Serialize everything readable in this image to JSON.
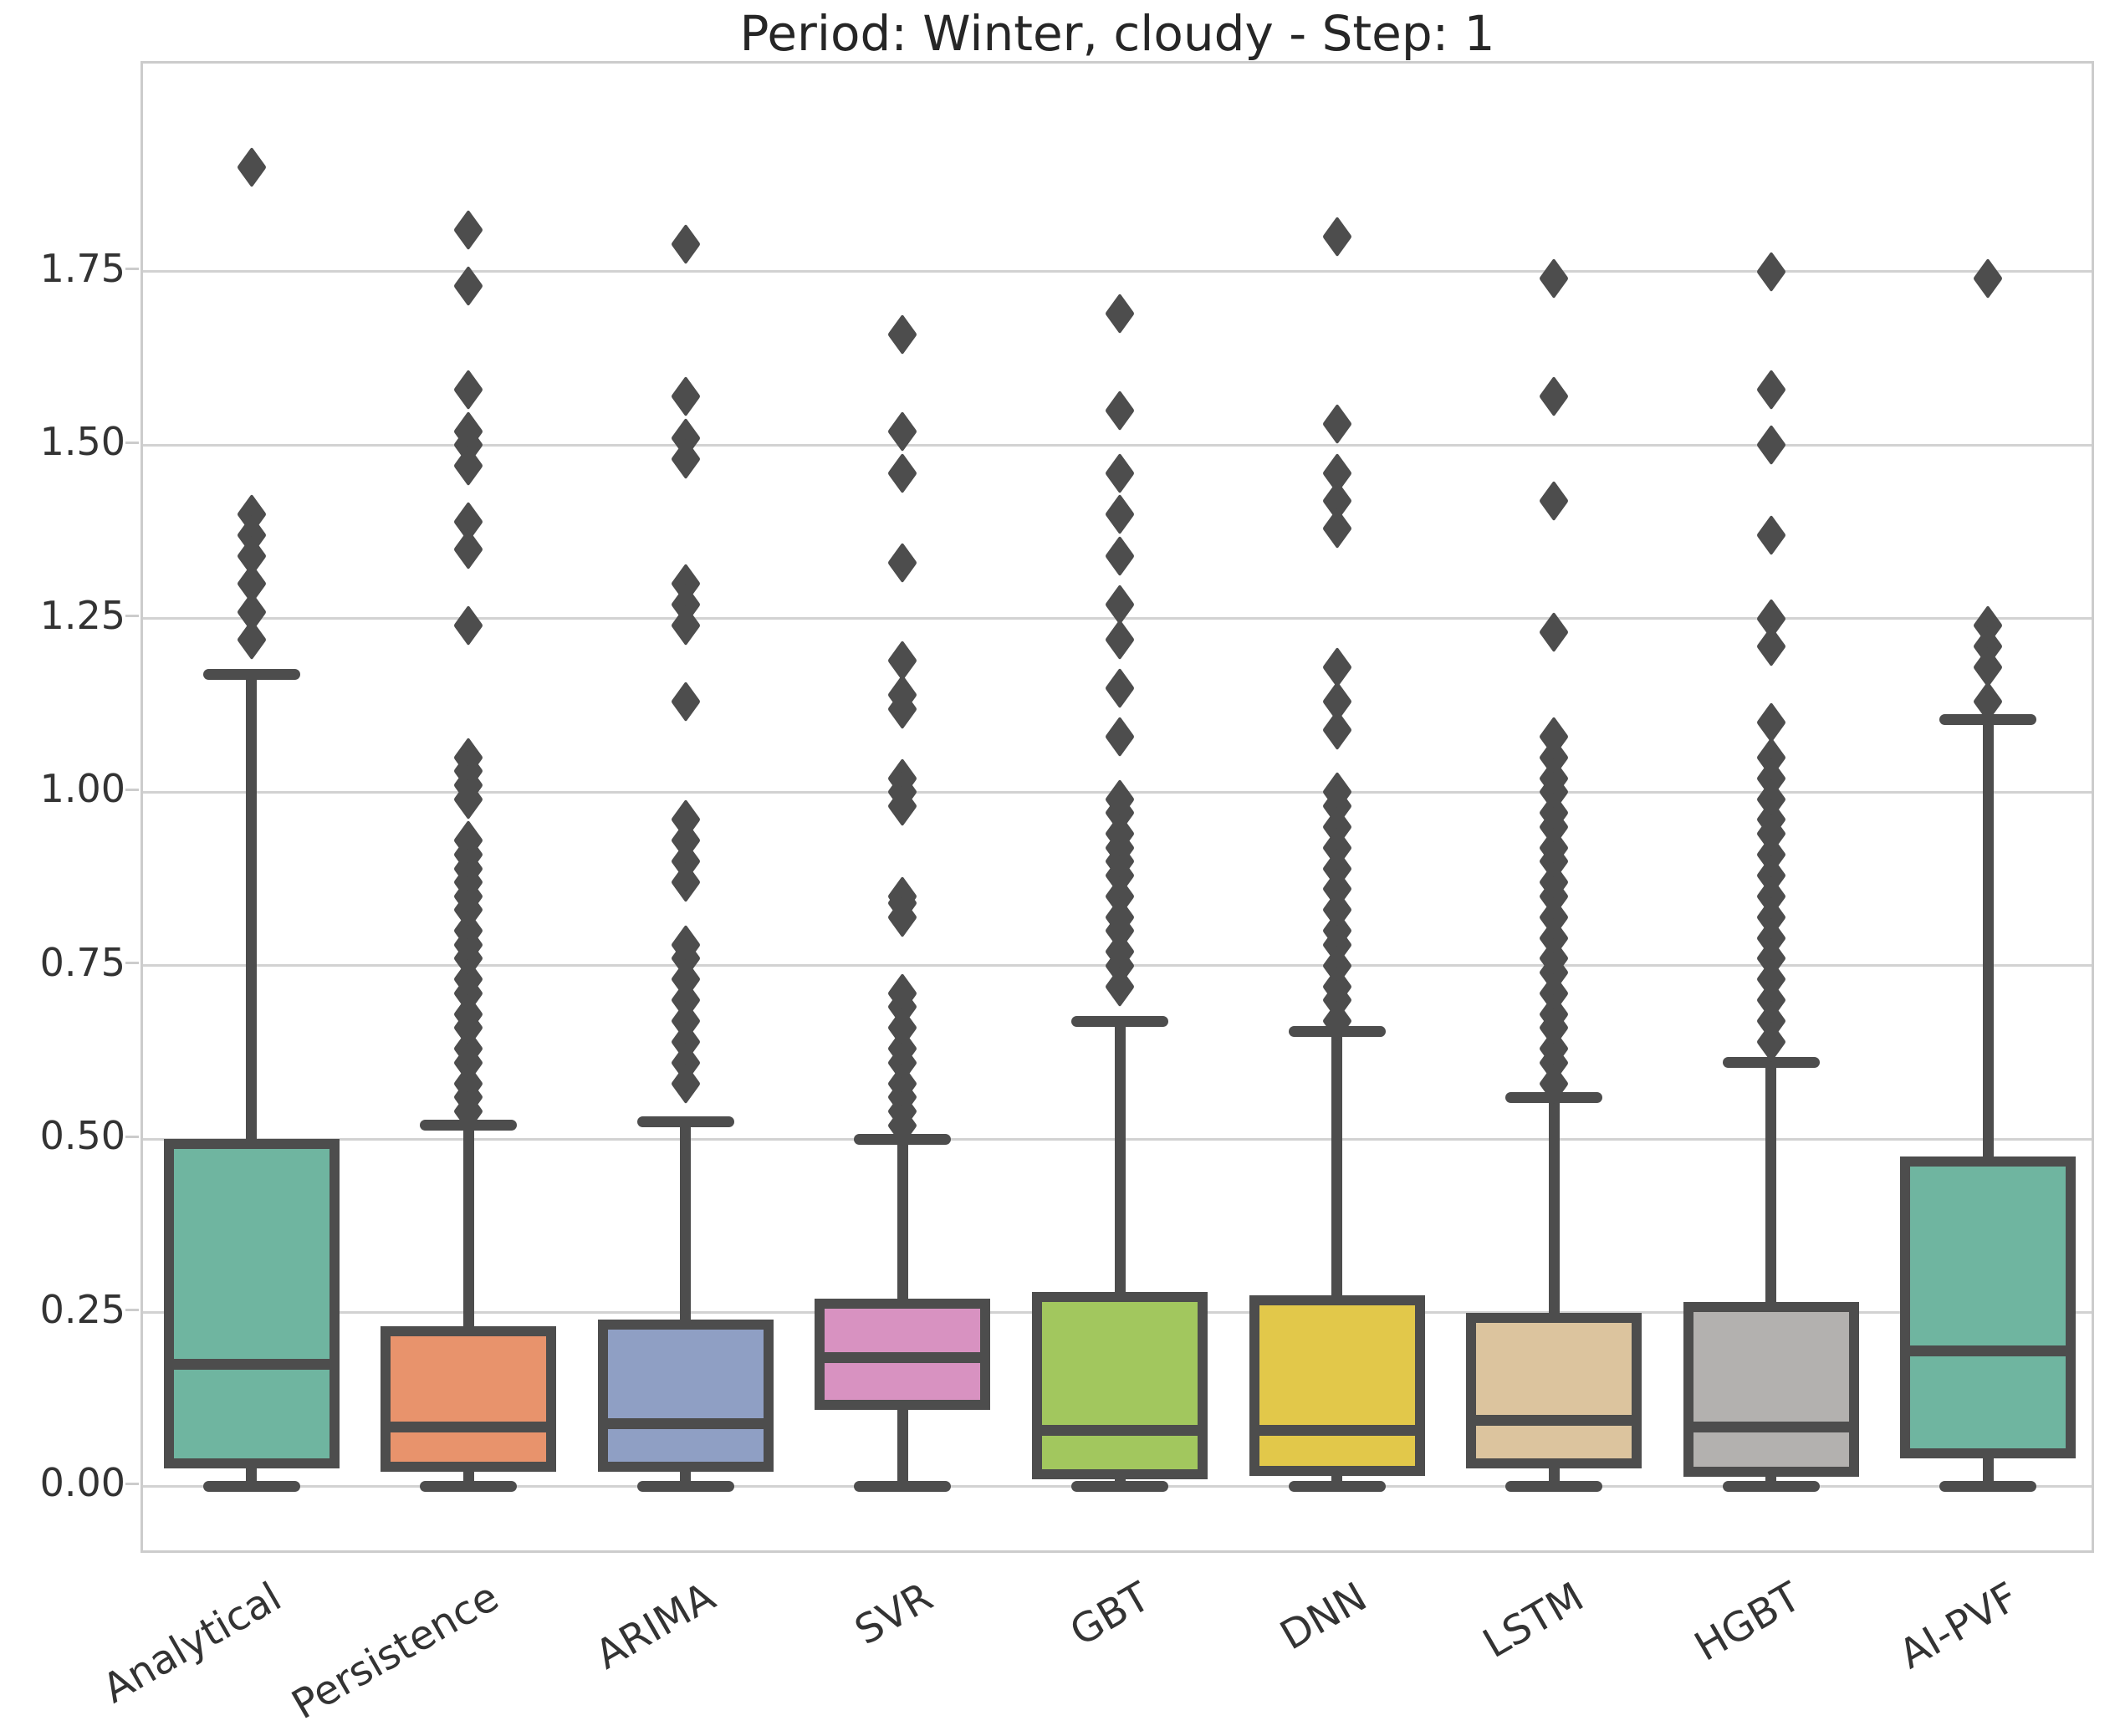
{
  "title": "Period: Winter, cloudy - Step: 1",
  "colors": {
    "line": "#4d4d4d",
    "grid": "#d2d2d2",
    "spine": "#cccccc",
    "text": "#333333",
    "title_text": "#262626",
    "background": "#ffffff"
  },
  "chart_data": {
    "type": "box",
    "title": "Period: Winter, cloudy - Step: 1",
    "xlabel": "",
    "ylabel": "",
    "ylim": [
      -0.1,
      2.05
    ],
    "grid": true,
    "y_ticks": [
      {
        "value": 0.0,
        "label": "0.00"
      },
      {
        "value": 0.25,
        "label": "0.25"
      },
      {
        "value": 0.5,
        "label": "0.50"
      },
      {
        "value": 0.75,
        "label": "0.75"
      },
      {
        "value": 1.0,
        "label": "1.00"
      },
      {
        "value": 1.25,
        "label": "1.25"
      },
      {
        "value": 1.5,
        "label": "1.50"
      },
      {
        "value": 1.75,
        "label": "1.75"
      }
    ],
    "categories": [
      "Analytical",
      "Persistence",
      "ARIMA",
      "SVR",
      "GBT",
      "DNN",
      "LSTM",
      "HGBT",
      "AI-PVF"
    ],
    "series": [
      {
        "name": "Analytical",
        "color": "#6fb5a0",
        "whisker_low": 0.0,
        "q1": 0.025,
        "median": 0.175,
        "q3": 0.5,
        "whisker_high": 1.17,
        "outliers": [
          1.9,
          1.4,
          1.37,
          1.34,
          1.3,
          1.26,
          1.22
        ]
      },
      {
        "name": "Persistence",
        "color": "#e8936c",
        "whisker_low": 0.0,
        "q1": 0.02,
        "median": 0.085,
        "q3": 0.23,
        "whisker_high": 0.52,
        "outliers": [
          1.81,
          1.73,
          1.58,
          1.52,
          1.5,
          1.47,
          1.39,
          1.35,
          1.24,
          1.05,
          1.03,
          1.01,
          0.99,
          0.93,
          0.91,
          0.89,
          0.87,
          0.85,
          0.83,
          0.8,
          0.78,
          0.76,
          0.73,
          0.71,
          0.68,
          0.66,
          0.63,
          0.61,
          0.58,
          0.56,
          0.54
        ]
      },
      {
        "name": "ARIMA",
        "color": "#8f9fc4",
        "whisker_low": 0.0,
        "q1": 0.02,
        "median": 0.09,
        "q3": 0.24,
        "whisker_high": 0.525,
        "outliers": [
          1.79,
          1.57,
          1.51,
          1.48,
          1.3,
          1.27,
          1.24,
          1.13,
          0.96,
          0.93,
          0.9,
          0.87,
          0.78,
          0.76,
          0.73,
          0.7,
          0.67,
          0.64,
          0.61,
          0.58
        ]
      },
      {
        "name": "SVR",
        "color": "#d892c1",
        "whisker_low": 0.0,
        "q1": 0.11,
        "median": 0.185,
        "q3": 0.27,
        "whisker_high": 0.5,
        "outliers": [
          1.66,
          1.52,
          1.46,
          1.33,
          1.19,
          1.14,
          1.12,
          1.02,
          1.0,
          0.98,
          0.85,
          0.84,
          0.82,
          0.71,
          0.69,
          0.66,
          0.63,
          0.61,
          0.58,
          0.56,
          0.54,
          0.52
        ]
      },
      {
        "name": "GBT",
        "color": "#a2c75e",
        "whisker_low": 0.0,
        "q1": 0.01,
        "median": 0.08,
        "q3": 0.28,
        "whisker_high": 0.67,
        "outliers": [
          1.69,
          1.55,
          1.46,
          1.4,
          1.34,
          1.27,
          1.22,
          1.15,
          1.08,
          0.99,
          0.97,
          0.94,
          0.92,
          0.9,
          0.88,
          0.85,
          0.82,
          0.8,
          0.77,
          0.75,
          0.72
        ]
      },
      {
        "name": "DNN",
        "color": "#e2c84a",
        "whisker_low": 0.0,
        "q1": 0.015,
        "median": 0.08,
        "q3": 0.275,
        "whisker_high": 0.655,
        "outliers": [
          1.8,
          1.53,
          1.46,
          1.42,
          1.38,
          1.18,
          1.13,
          1.09,
          1.0,
          0.98,
          0.95,
          0.92,
          0.89,
          0.86,
          0.83,
          0.8,
          0.78,
          0.75,
          0.72,
          0.7,
          0.67
        ]
      },
      {
        "name": "LSTM",
        "color": "#dcc49e",
        "whisker_low": 0.0,
        "q1": 0.025,
        "median": 0.095,
        "q3": 0.25,
        "whisker_high": 0.56,
        "outliers": [
          1.74,
          1.57,
          1.42,
          1.23,
          1.08,
          1.05,
          1.02,
          1.0,
          0.97,
          0.95,
          0.92,
          0.9,
          0.87,
          0.85,
          0.82,
          0.79,
          0.76,
          0.74,
          0.71,
          0.68,
          0.66,
          0.63,
          0.61,
          0.58
        ]
      },
      {
        "name": "HGBT",
        "color": "#b3b1af",
        "whisker_low": 0.0,
        "q1": 0.013,
        "median": 0.085,
        "q3": 0.265,
        "whisker_high": 0.61,
        "outliers": [
          1.75,
          1.58,
          1.5,
          1.37,
          1.25,
          1.21,
          1.1,
          1.05,
          1.02,
          0.99,
          0.96,
          0.94,
          0.91,
          0.88,
          0.85,
          0.82,
          0.79,
          0.76,
          0.73,
          0.7,
          0.67,
          0.64
        ]
      },
      {
        "name": "AI-PVF",
        "color": "#6fb5a0",
        "whisker_low": 0.0,
        "q1": 0.04,
        "median": 0.195,
        "q3": 0.475,
        "whisker_high": 1.105,
        "outliers": [
          1.74,
          1.24,
          1.21,
          1.18,
          1.13
        ]
      }
    ]
  }
}
